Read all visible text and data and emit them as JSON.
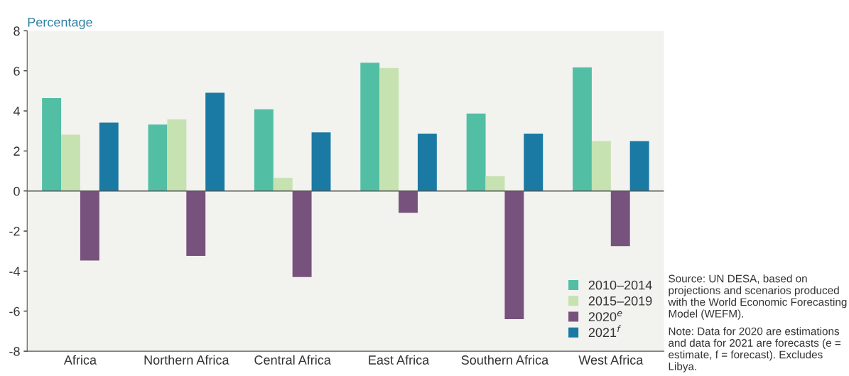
{
  "chart_data": {
    "type": "bar",
    "ylabel": "Percentage",
    "categories": [
      "Africa",
      "Northern Africa",
      "Central Africa",
      "East Africa",
      "Southern Africa",
      "West Africa"
    ],
    "series": [
      {
        "name": "2010–2014",
        "color": "#52bfa5",
        "values": [
          4.64,
          3.32,
          4.08,
          6.41,
          3.87,
          6.18
        ]
      },
      {
        "name": "2015–2019",
        "color": "#c6e2b0",
        "values": [
          2.81,
          3.58,
          0.66,
          6.14,
          0.74,
          2.49
        ]
      },
      {
        "name": "2020$^{e}$",
        "color": "#77527c",
        "values": [
          -3.47,
          -3.24,
          -4.3,
          -1.09,
          -6.4,
          -2.75
        ]
      },
      {
        "name": "2021$^{f}$",
        "color": "#1a7aa3",
        "values": [
          3.42,
          4.91,
          2.93,
          2.87,
          2.87,
          2.49
        ]
      }
    ],
    "ylim": [
      -8,
      8
    ],
    "yticks": [
      -8,
      -6,
      -4,
      -2,
      0,
      2,
      4,
      6,
      8
    ],
    "grid": false,
    "legend": "bottom right",
    "ref_lines": [
      {
        "axis": "y",
        "value": 0,
        "color": "#555555"
      }
    ],
    "annotations": [
      "Source: UN DESA, based on projections and scenarios produced with the World Economic Forecasting Model (WEFM).",
      "Note: Data for 2020 are estimations and data for 2021 are forecasts (e = estimate, f = forecast). Excludes Libya."
    ]
  }
}
